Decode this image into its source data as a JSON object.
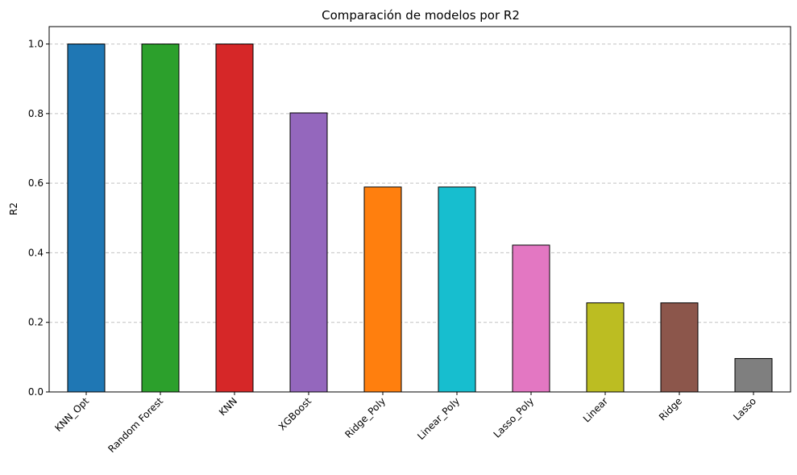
{
  "chart_data": {
    "type": "bar",
    "title": "Comparación de modelos por R2",
    "xlabel": "",
    "ylabel": "R2",
    "categories": [
      "KNN_Opt",
      "Random Forest",
      "KNN",
      "XGBoost",
      "Ridge_Poly",
      "Linear_Poly",
      "Lasso_Poly",
      "Linear",
      "Ridge",
      "Lasso"
    ],
    "values": [
      1.0,
      1.0,
      1.0,
      0.802,
      0.589,
      0.589,
      0.422,
      0.256,
      0.256,
      0.096
    ],
    "colors": [
      "#1f77b4",
      "#2ca02c",
      "#d62728",
      "#9467bd",
      "#ff7f0e",
      "#17becf",
      "#e377c2",
      "#bcbd22",
      "#8c564b",
      "#7f7f7f"
    ],
    "ylim": [
      0,
      1.05
    ],
    "yticks": [
      "0.0",
      "0.2",
      "0.4",
      "0.6",
      "0.8",
      "1.0"
    ],
    "grid": "y-dashed",
    "legend": "none"
  }
}
